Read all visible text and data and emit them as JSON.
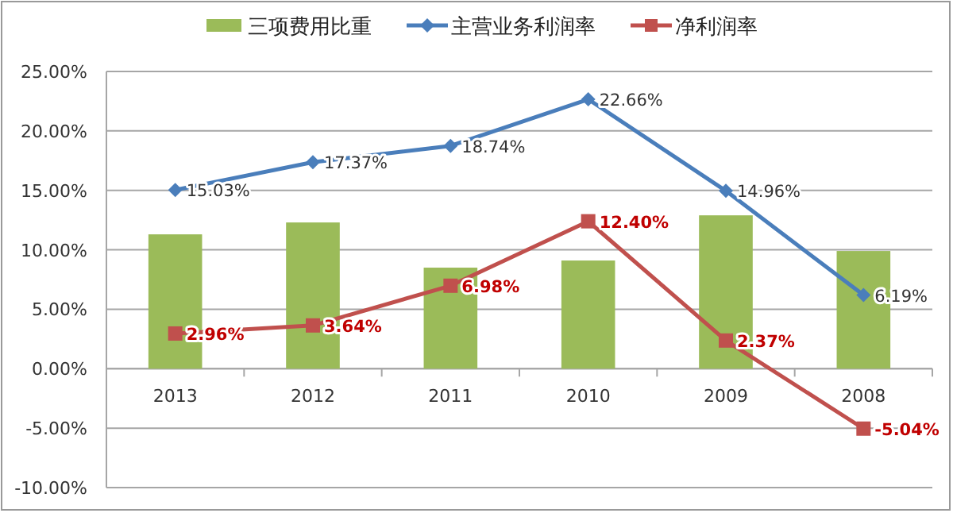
{
  "chart_data": {
    "type": "bar",
    "categories": [
      "2013",
      "2012",
      "2011",
      "2010",
      "2009",
      "2008"
    ],
    "series": [
      {
        "name": "三项费用比重",
        "color": "#9bbb59",
        "values": [
          11.3,
          12.3,
          8.5,
          9.1,
          12.9,
          9.9
        ]
      },
      {
        "name": "主营业务利润率",
        "type": "line",
        "color": "#4a7ebb",
        "marker": "diamond",
        "values": [
          15.03,
          17.37,
          18.74,
          22.66,
          14.96,
          6.19
        ],
        "value_labels": [
          "15.03%",
          "17.37%",
          "18.74%",
          "22.66%",
          "14.96%",
          "6.19%"
        ]
      },
      {
        "name": "净利润率",
        "type": "line",
        "color": "#c0504d",
        "marker": "square",
        "values": [
          2.96,
          3.64,
          6.98,
          12.4,
          2.37,
          -5.04
        ],
        "value_labels": [
          "2.96%",
          "3.64%",
          "6.98%",
          "12.40%",
          "2.37%",
          "-5.04%"
        ]
      }
    ],
    "ylim": [
      -10,
      25
    ],
    "yticks": [
      {
        "value": -10,
        "label": "-10.00%"
      },
      {
        "value": -5,
        "label": "-5.00%"
      },
      {
        "value": 0,
        "label": "0.00%"
      },
      {
        "value": 5,
        "label": "5.00%"
      },
      {
        "value": 10,
        "label": "10.00%"
      },
      {
        "value": 15,
        "label": "15.00%"
      },
      {
        "value": 20,
        "label": "20.00%"
      },
      {
        "value": 25,
        "label": "25.00%"
      }
    ],
    "grid": "y",
    "legend": "top"
  }
}
